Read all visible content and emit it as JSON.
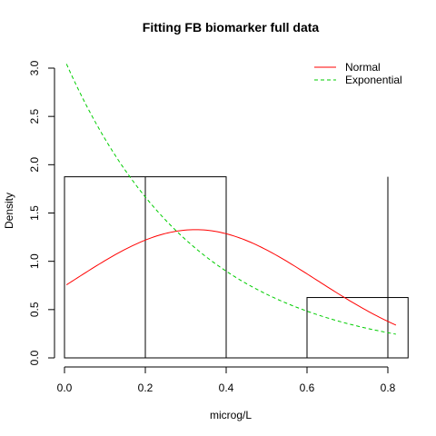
{
  "chart_data": {
    "type": "histogram",
    "title": "Fitting FB biomarker full data",
    "xlabel": "microg/L",
    "ylabel": "Density",
    "xlim": [
      0,
      0.85
    ],
    "ylim": [
      0,
      3.1
    ],
    "x_ticks": [
      0.0,
      0.2,
      0.4,
      0.6,
      0.8
    ],
    "x_tick_labels": [
      "0.0",
      "0.2",
      "0.4",
      "0.6",
      "0.8"
    ],
    "y_ticks": [
      0.0,
      0.5,
      1.0,
      1.5,
      2.0,
      2.5,
      3.0
    ],
    "y_tick_labels": [
      "0.0",
      "0.5",
      "1.0",
      "1.5",
      "2.0",
      "2.5",
      "3.0"
    ],
    "bins": [
      {
        "from": 0.0,
        "to": 0.4,
        "density": 1.875
      },
      {
        "from": 0.4,
        "to": 0.6,
        "density": 0.0
      },
      {
        "from": 0.6,
        "to": 0.85,
        "density": 0.625
      }
    ],
    "vertical_lines": [
      0.2,
      0.8
    ],
    "curve_x_range": [
      0.005,
      0.82
    ],
    "series": [
      {
        "name": "Normal",
        "kind": "normal",
        "mean": 0.3237,
        "sd": 0.3005,
        "color": "#ff0000",
        "dash": "solid"
      },
      {
        "name": "Exponential",
        "kind": "exponential",
        "rate": 3.09,
        "color": "#00cd00",
        "dash": "dashed"
      }
    ],
    "legend": {
      "position": "top-right",
      "entries": [
        "Normal",
        "Exponential"
      ]
    },
    "grid": false
  }
}
